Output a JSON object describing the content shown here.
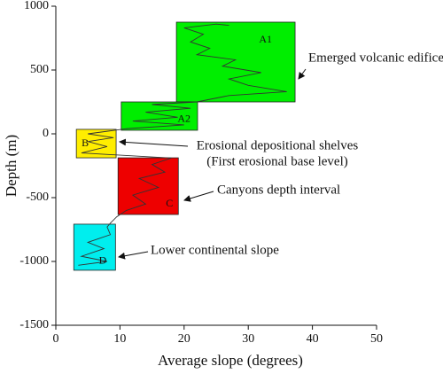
{
  "chart_data": {
    "type": "box-profile",
    "x_label": "Average slope (degrees)",
    "y_label": "Depth (m)",
    "xlim": [
      0,
      50
    ],
    "xticks": [
      0,
      10,
      20,
      30,
      40,
      50
    ],
    "ylim": [
      -1500,
      1000
    ],
    "yticks": [
      -1500,
      -1000,
      -500,
      0,
      500,
      1000
    ],
    "boxes": [
      {
        "label": "A1",
        "color": "#00ee00",
        "x0": 18.8,
        "x1": 37.3,
        "y0": 250,
        "y1": 875
      },
      {
        "label": "A2",
        "color": "#00ee00",
        "x0": 10.2,
        "x1": 22.1,
        "y0": 28,
        "y1": 250
      },
      {
        "label": "B",
        "color": "#ffee00",
        "x0": 3.2,
        "x1": 9.4,
        "y0": -188,
        "y1": 35
      },
      {
        "label": "C",
        "color": "#ee0000",
        "x0": 9.7,
        "x1": 19.1,
        "y0": -632,
        "y1": -188
      },
      {
        "label": "D",
        "color": "#00eeee",
        "x0": 2.8,
        "x1": 9.3,
        "y0": -1069,
        "y1": -708
      }
    ],
    "profile": {
      "color": "#333333",
      "x": [
        3.5,
        8,
        4,
        7.5,
        5,
        8.5,
        8,
        8.5,
        9.5,
        11,
        14,
        12,
        16,
        13,
        17,
        15,
        18,
        4,
        8,
        5,
        9,
        5,
        8,
        11,
        20,
        12,
        19,
        14,
        21,
        15,
        22,
        27,
        36,
        30,
        27,
        32,
        26,
        28,
        22,
        24,
        21,
        23,
        20,
        25,
        27
      ],
      "y": [
        -1030,
        -1000,
        -960,
        -900,
        -850,
        -790,
        -730,
        -700,
        -650,
        -600,
        -550,
        -480,
        -420,
        -350,
        -300,
        -240,
        -190,
        -150,
        -100,
        -60,
        -30,
        0,
        20,
        40,
        70,
        100,
        130,
        170,
        200,
        230,
        250,
        300,
        330,
        380,
        430,
        480,
        530,
        580,
        620,
        670,
        720,
        780,
        830,
        860,
        850
      ]
    },
    "annotations": [
      "Emerged volcanic edifice",
      "Erosional depositional shelves",
      "(First erosional base level)",
      "Canyons depth interval",
      "Lower continental slope"
    ]
  }
}
